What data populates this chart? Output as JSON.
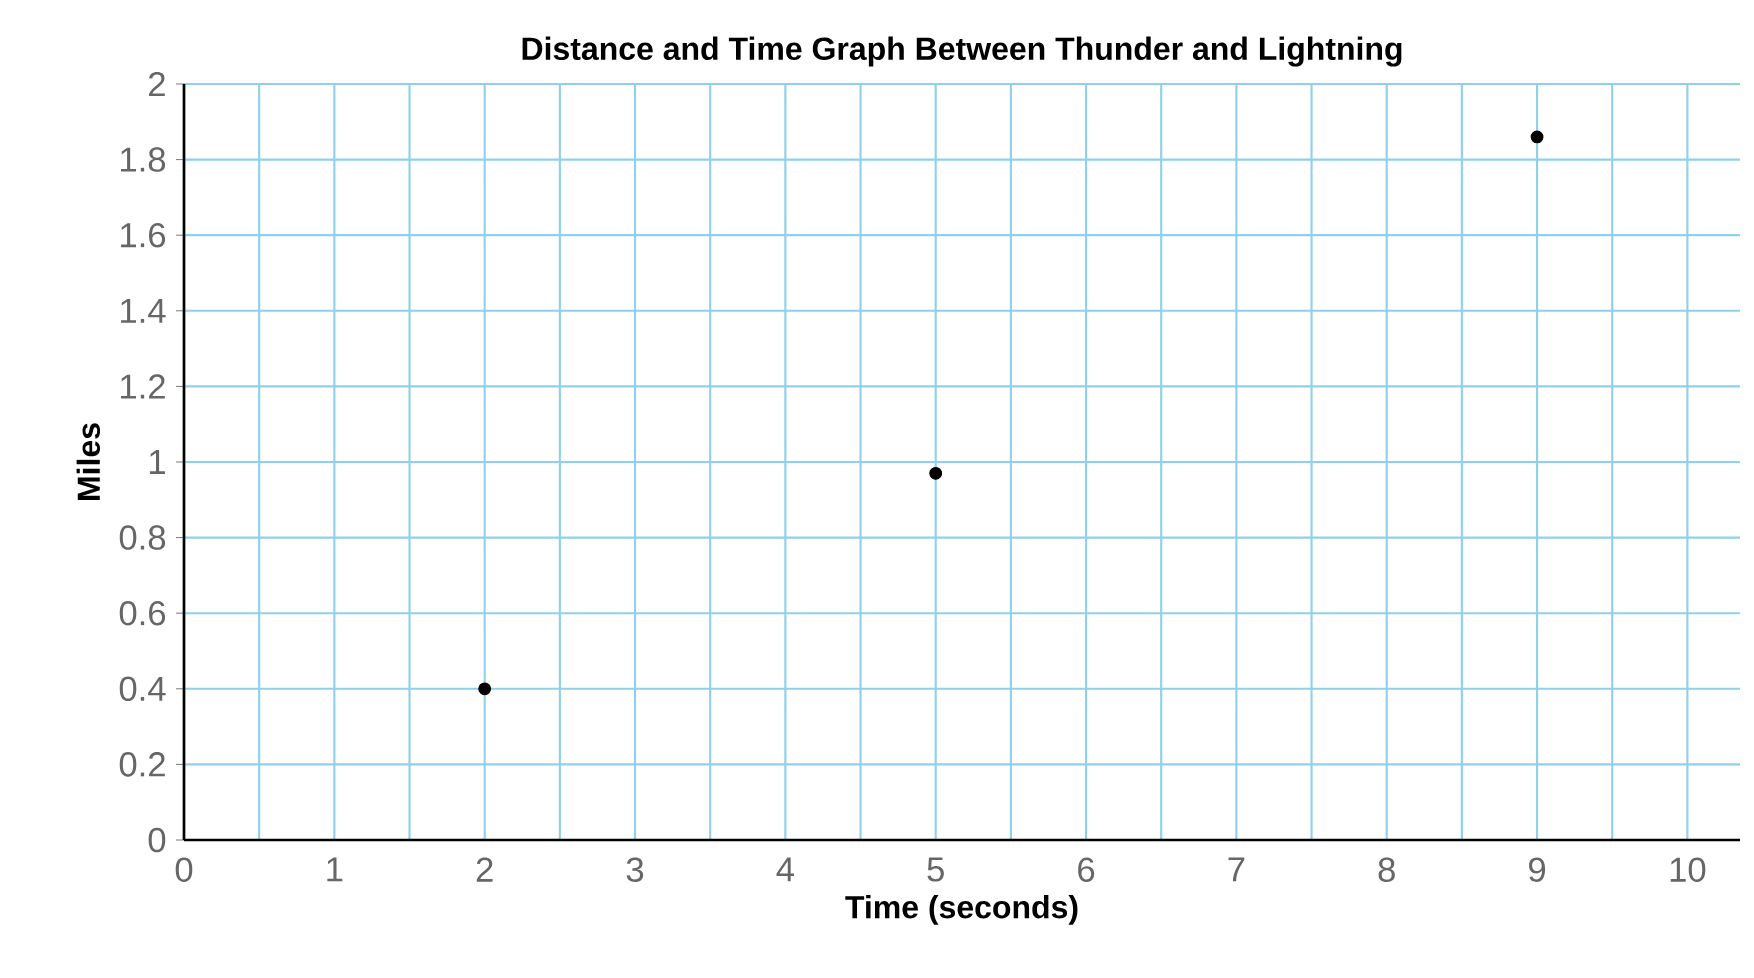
{
  "chart_data": {
    "type": "scatter",
    "title": "Distance and Time Graph Between Thunder and Lightning",
    "xlabel": "Time (seconds)",
    "ylabel": "Miles",
    "x": [
      2,
      5,
      9
    ],
    "values": [
      0.4,
      0.97,
      1.86
    ],
    "color": "#000000",
    "marker": "circle",
    "grid": true,
    "xlim": [
      0,
      10.35
    ],
    "ylim": [
      0,
      2
    ],
    "xticks": [
      0,
      {
        "value": 0.5,
        "label": null
      },
      1,
      {
        "value": 1.5,
        "label": null
      },
      2,
      {
        "value": 2.5,
        "label": null
      },
      3,
      {
        "value": 3.5,
        "label": null
      },
      4,
      {
        "value": 4.5,
        "label": null
      },
      5,
      {
        "value": 5.5,
        "label": null
      },
      6,
      {
        "value": 6.5,
        "label": null
      },
      7,
      {
        "value": 7.5,
        "label": null
      },
      8,
      {
        "value": 8.5,
        "label": null
      },
      9,
      {
        "value": 9.5,
        "label": null
      },
      10
    ],
    "yticks": [
      0,
      0.2,
      0.4,
      0.6,
      0.8,
      1,
      1.2,
      1.4,
      1.6,
      1.8,
      2
    ]
  }
}
